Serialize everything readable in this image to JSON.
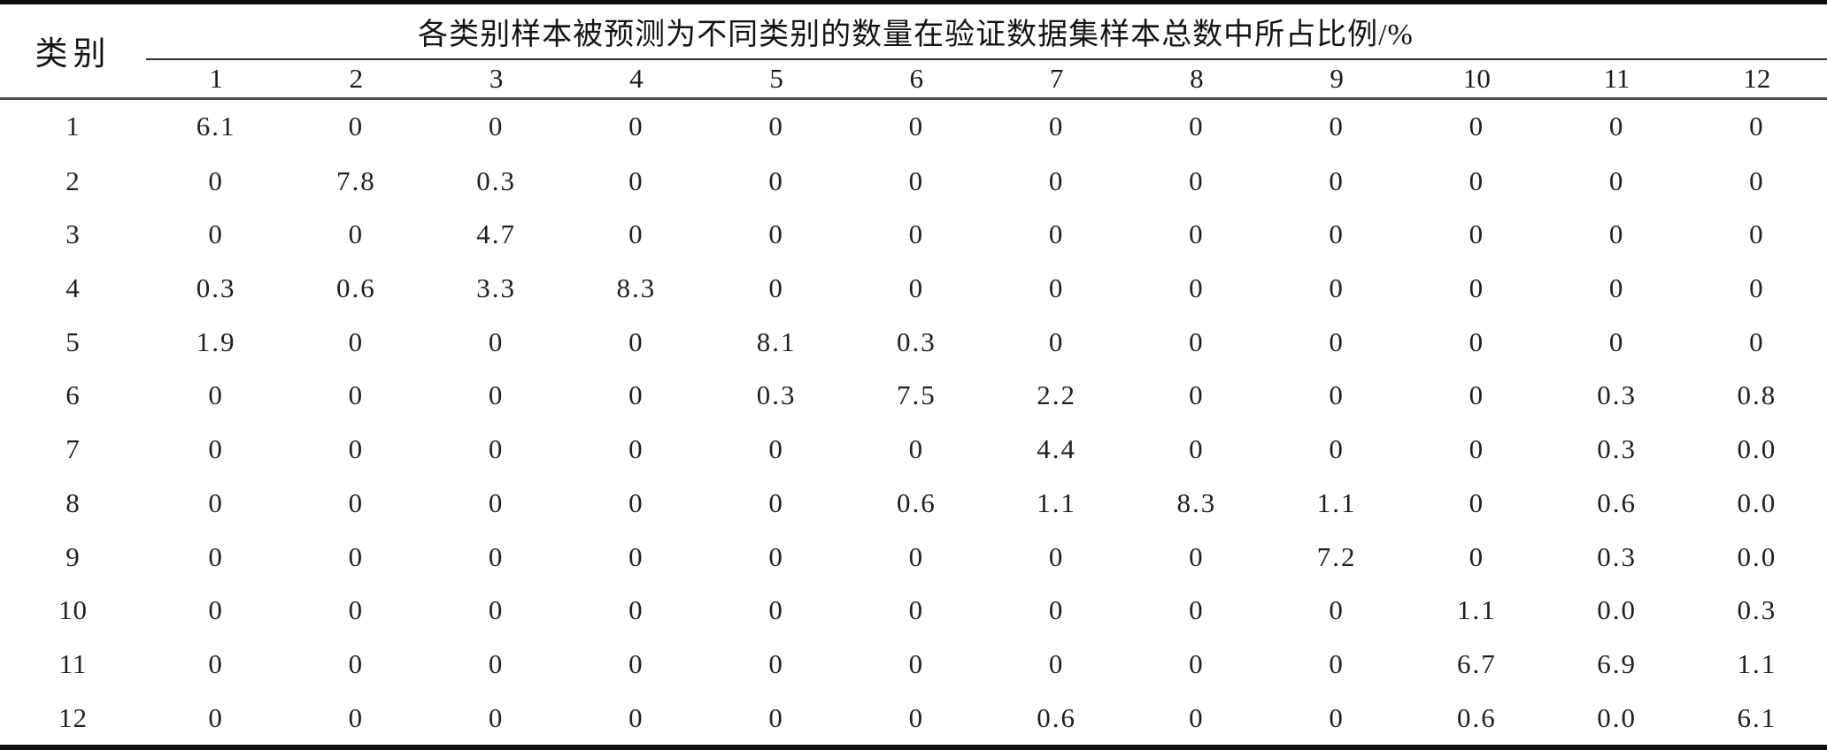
{
  "page": {
    "background": "#ffffff",
    "text_color": "#1a1a1a",
    "rule_color": "#0d0d0d"
  },
  "table": {
    "corner_header": "类别",
    "span_header": "各类别样本被预测为不同类别的数量在验证数据集样本总数中所占比例/%",
    "col_headers": [
      "1",
      "2",
      "3",
      "4",
      "5",
      "6",
      "7",
      "8",
      "9",
      "10",
      "11",
      "12"
    ],
    "rows": [
      {
        "label": "1",
        "values": [
          "6.1",
          "0",
          "0",
          "0",
          "0",
          "0",
          "0",
          "0",
          "0",
          "0",
          "0",
          "0"
        ]
      },
      {
        "label": "2",
        "values": [
          "0",
          "7.8",
          "0.3",
          "0",
          "0",
          "0",
          "0",
          "0",
          "0",
          "0",
          "0",
          "0"
        ]
      },
      {
        "label": "3",
        "values": [
          "0",
          "0",
          "4.7",
          "0",
          "0",
          "0",
          "0",
          "0",
          "0",
          "0",
          "0",
          "0"
        ]
      },
      {
        "label": "4",
        "values": [
          "0.3",
          "0.6",
          "3.3",
          "8.3",
          "0",
          "0",
          "0",
          "0",
          "0",
          "0",
          "0",
          "0"
        ]
      },
      {
        "label": "5",
        "values": [
          "1.9",
          "0",
          "0",
          "0",
          "8.1",
          "0.3",
          "0",
          "0",
          "0",
          "0",
          "0",
          "0"
        ]
      },
      {
        "label": "6",
        "values": [
          "0",
          "0",
          "0",
          "0",
          "0.3",
          "7.5",
          "2.2",
          "0",
          "0",
          "0",
          "0.3",
          "0.8"
        ]
      },
      {
        "label": "7",
        "values": [
          "0",
          "0",
          "0",
          "0",
          "0",
          "0",
          "4.4",
          "0",
          "0",
          "0",
          "0.3",
          "0.0"
        ]
      },
      {
        "label": "8",
        "values": [
          "0",
          "0",
          "0",
          "0",
          "0",
          "0.6",
          "1.1",
          "8.3",
          "1.1",
          "0",
          "0.6",
          "0.0"
        ]
      },
      {
        "label": "9",
        "values": [
          "0",
          "0",
          "0",
          "0",
          "0",
          "0",
          "0",
          "0",
          "7.2",
          "0",
          "0.3",
          "0.0"
        ]
      },
      {
        "label": "10",
        "values": [
          "0",
          "0",
          "0",
          "0",
          "0",
          "0",
          "0",
          "0",
          "0",
          "1.1",
          "0.0",
          "0.3"
        ]
      },
      {
        "label": "11",
        "values": [
          "0",
          "0",
          "0",
          "0",
          "0",
          "0",
          "0",
          "0",
          "0",
          "6.7",
          "6.9",
          "1.1"
        ]
      },
      {
        "label": "12",
        "values": [
          "0",
          "0",
          "0",
          "0",
          "0",
          "0",
          "0.6",
          "0",
          "0",
          "0.6",
          "0.0",
          "6.1"
        ]
      }
    ]
  },
  "chart_data": {
    "type": "table",
    "title": "各类别样本被预测为不同类别的数量在验证数据集样本总数中所占比例/%",
    "row_axis_label": "类别",
    "columns": [
      "1",
      "2",
      "3",
      "4",
      "5",
      "6",
      "7",
      "8",
      "9",
      "10",
      "11",
      "12"
    ],
    "matrix": [
      [
        6.1,
        0,
        0,
        0,
        0,
        0,
        0,
        0,
        0,
        0,
        0,
        0
      ],
      [
        0,
        7.8,
        0.3,
        0,
        0,
        0,
        0,
        0,
        0,
        0,
        0,
        0
      ],
      [
        0,
        0,
        4.7,
        0,
        0,
        0,
        0,
        0,
        0,
        0,
        0,
        0
      ],
      [
        0.3,
        0.6,
        3.3,
        8.3,
        0,
        0,
        0,
        0,
        0,
        0,
        0,
        0
      ],
      [
        1.9,
        0,
        0,
        0,
        8.1,
        0.3,
        0,
        0,
        0,
        0,
        0,
        0
      ],
      [
        0,
        0,
        0,
        0,
        0.3,
        7.5,
        2.2,
        0,
        0,
        0,
        0.3,
        0.8
      ],
      [
        0,
        0,
        0,
        0,
        0,
        0,
        4.4,
        0,
        0,
        0,
        0.3,
        0.0
      ],
      [
        0,
        0,
        0,
        0,
        0,
        0.6,
        1.1,
        8.3,
        1.1,
        0,
        0.6,
        0.0
      ],
      [
        0,
        0,
        0,
        0,
        0,
        0,
        0,
        0,
        7.2,
        0,
        0.3,
        0.0
      ],
      [
        0,
        0,
        0,
        0,
        0,
        0,
        0,
        0,
        0,
        1.1,
        0.0,
        0.3
      ],
      [
        0,
        0,
        0,
        0,
        0,
        0,
        0,
        0,
        0,
        6.7,
        6.9,
        1.1
      ],
      [
        0,
        0,
        0,
        0,
        0,
        0,
        0.6,
        0,
        0,
        0.6,
        0.0,
        6.1
      ]
    ]
  }
}
